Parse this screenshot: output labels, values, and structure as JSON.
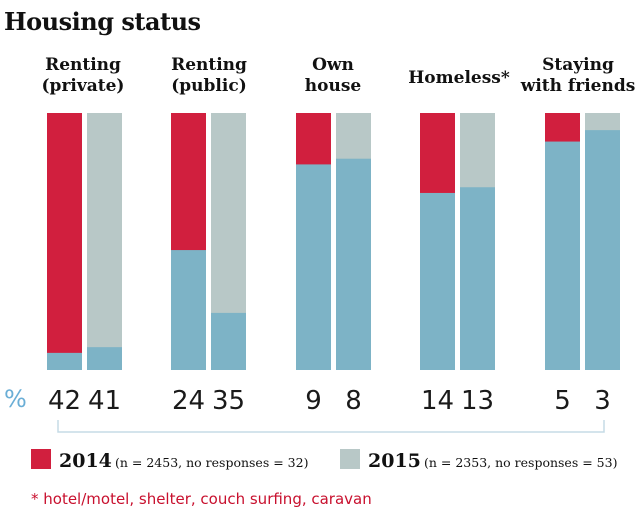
{
  "chart_data": {
    "type": "bar",
    "title": "Housing status",
    "unit_label": "%",
    "categories": [
      {
        "lines": [
          "Renting",
          "(private)"
        ]
      },
      {
        "lines": [
          "Renting",
          "(public)"
        ]
      },
      {
        "lines": [
          "Own",
          "house"
        ]
      },
      {
        "lines": [
          "Homeless*"
        ]
      },
      {
        "lines": [
          "Staying",
          "with friends"
        ]
      }
    ],
    "series": [
      {
        "name": "2014",
        "note": "(n = 2453, no responses = 32)",
        "values": [
          42,
          24,
          9,
          14,
          5
        ]
      },
      {
        "name": "2015",
        "note": "(n = 2353, no responses = 53)",
        "values": [
          41,
          35,
          8,
          13,
          3
        ]
      }
    ],
    "ylim": [
      0,
      45
    ],
    "footnote": "* hotel/motel, shelter, couch surfing, caravan",
    "colors": {
      "2014": "#d11f3e",
      "2015": "#b8c8c7",
      "remainder": "#7db3c6",
      "percent_sign": "#6aaed6",
      "footnote": "#c8102e",
      "bracket": "#c5dbe6"
    }
  }
}
